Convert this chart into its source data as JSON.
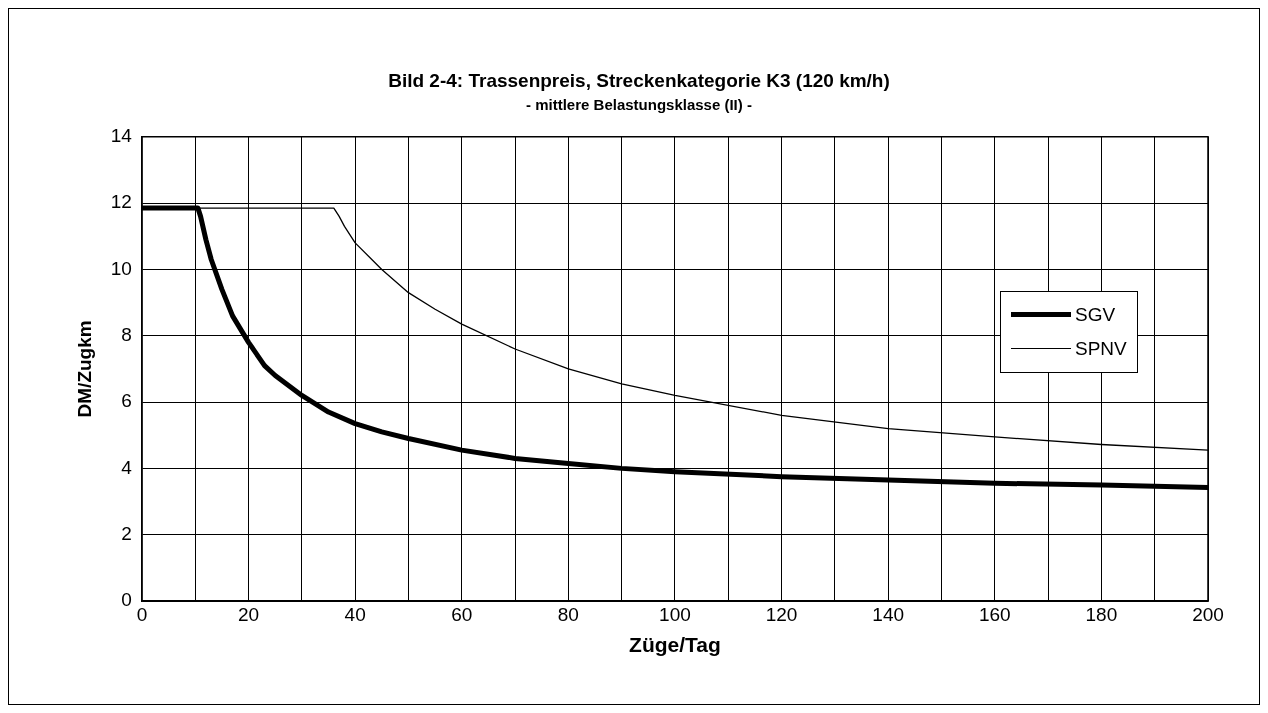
{
  "chart_data": {
    "type": "line",
    "title": "Bild 2-4: Trassenpreis, Streckenkategorie K3 (120 km/h)",
    "subtitle": "- mittlere Belastungsklasse (II) -",
    "xlabel": "Züge/Tag",
    "ylabel": "DM/Zugkm",
    "series": [
      {
        "name": "SGV",
        "color": "#000000",
        "x": [
          0,
          5,
          10,
          10.5,
          11,
          12,
          13,
          15,
          17,
          20,
          23,
          25,
          30,
          35,
          40,
          45,
          50,
          60,
          70,
          80,
          90,
          100,
          120,
          140,
          160,
          180,
          200
        ],
        "values": [
          11.85,
          11.85,
          11.85,
          11.85,
          11.6,
          10.9,
          10.3,
          9.4,
          8.6,
          7.8,
          7.1,
          6.8,
          6.2,
          5.7,
          5.35,
          5.1,
          4.9,
          4.55,
          4.3,
          4.15,
          4.0,
          3.9,
          3.75,
          3.65,
          3.55,
          3.5,
          3.42
        ]
      },
      {
        "name": "SPNV",
        "color": "#000000",
        "x": [
          0,
          10,
          20,
          30,
          36,
          37,
          38,
          40,
          45,
          50,
          55,
          60,
          70,
          80,
          90,
          100,
          120,
          140,
          160,
          180,
          200
        ],
        "values": [
          11.85,
          11.85,
          11.85,
          11.85,
          11.85,
          11.6,
          11.3,
          10.8,
          10.0,
          9.3,
          8.8,
          8.35,
          7.6,
          7.0,
          6.55,
          6.2,
          5.6,
          5.2,
          4.95,
          4.72,
          4.55
        ]
      }
    ],
    "xlim": [
      0,
      200
    ],
    "xticks": [
      0,
      {
        "value": 10,
        "label": null
      },
      20,
      {
        "value": 30,
        "label": null
      },
      40,
      {
        "value": 50,
        "label": null
      },
      60,
      {
        "value": 70,
        "label": null
      },
      80,
      {
        "value": 90,
        "label": null
      },
      100,
      {
        "value": 110,
        "label": null
      },
      120,
      {
        "value": 130,
        "label": null
      },
      140,
      {
        "value": 150,
        "label": null
      },
      160,
      {
        "value": 170,
        "label": null
      },
      180,
      {
        "value": 190,
        "label": null
      },
      200
    ],
    "ylim": [
      0,
      14
    ],
    "yticks": [
      0,
      2,
      4,
      6,
      8,
      10,
      12,
      14
    ],
    "grid": true,
    "legend": "right",
    "marker": "none",
    "line_style": "solid"
  }
}
